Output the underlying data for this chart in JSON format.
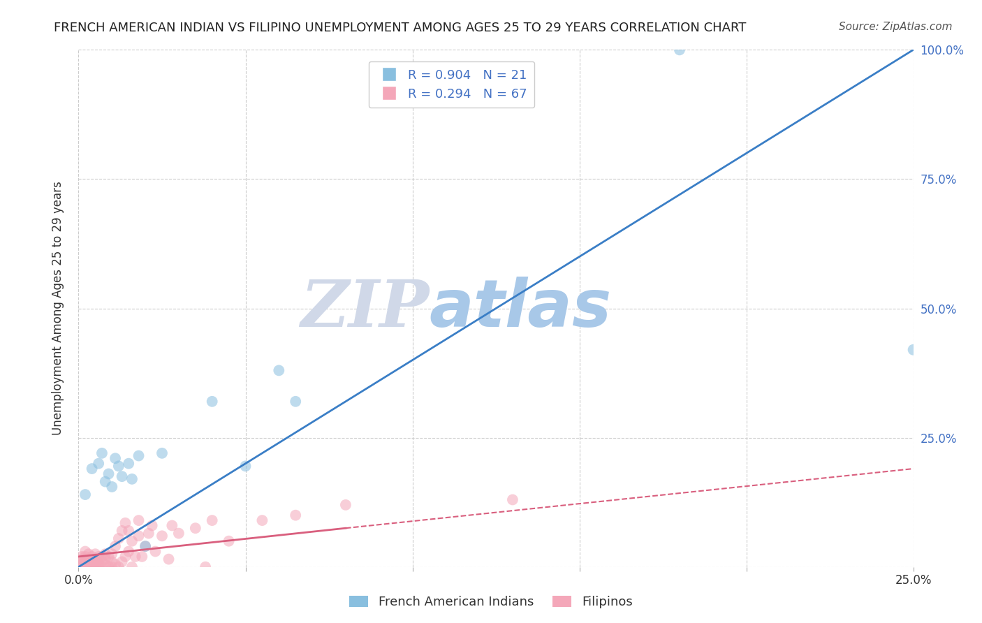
{
  "title": "FRENCH AMERICAN INDIAN VS FILIPINO UNEMPLOYMENT AMONG AGES 25 TO 29 YEARS CORRELATION CHART",
  "source": "Source: ZipAtlas.com",
  "ylabel": "Unemployment Among Ages 25 to 29 years",
  "xlabel_blue": "French American Indians",
  "xlabel_pink": "Filipinos",
  "R_blue": 0.904,
  "N_blue": 21,
  "R_pink": 0.294,
  "N_pink": 67,
  "color_blue": "#89bfdf",
  "color_pink": "#f4a7b9",
  "line_blue": "#3a7ec6",
  "line_pink": "#d95f7e",
  "watermark_zip": "ZIP",
  "watermark_atlas": "atlas",
  "watermark_color_zip": "#d0d8e8",
  "watermark_color_atlas": "#a8c8e8",
  "blue_scatter_x": [
    0.002,
    0.004,
    0.006,
    0.007,
    0.008,
    0.009,
    0.01,
    0.011,
    0.012,
    0.013,
    0.015,
    0.016,
    0.018,
    0.02,
    0.025,
    0.04,
    0.05,
    0.06,
    0.065,
    0.18,
    0.25
  ],
  "blue_scatter_y": [
    0.14,
    0.19,
    0.2,
    0.22,
    0.165,
    0.18,
    0.155,
    0.21,
    0.195,
    0.175,
    0.2,
    0.17,
    0.215,
    0.04,
    0.22,
    0.32,
    0.195,
    0.38,
    0.32,
    1.0,
    0.42
  ],
  "pink_scatter_x": [
    0.001,
    0.001,
    0.001,
    0.001,
    0.001,
    0.002,
    0.002,
    0.002,
    0.002,
    0.002,
    0.003,
    0.003,
    0.003,
    0.003,
    0.004,
    0.004,
    0.004,
    0.005,
    0.005,
    0.005,
    0.005,
    0.006,
    0.006,
    0.006,
    0.007,
    0.007,
    0.007,
    0.008,
    0.008,
    0.008,
    0.009,
    0.009,
    0.01,
    0.01,
    0.01,
    0.011,
    0.011,
    0.012,
    0.012,
    0.013,
    0.013,
    0.014,
    0.014,
    0.015,
    0.015,
    0.016,
    0.016,
    0.017,
    0.018,
    0.018,
    0.019,
    0.02,
    0.021,
    0.022,
    0.023,
    0.025,
    0.027,
    0.028,
    0.03,
    0.035,
    0.038,
    0.04,
    0.045,
    0.055,
    0.065,
    0.08,
    0.13
  ],
  "pink_scatter_y": [
    0.0,
    0.005,
    0.01,
    0.015,
    0.02,
    0.0,
    0.005,
    0.01,
    0.02,
    0.03,
    0.0,
    0.005,
    0.015,
    0.025,
    0.0,
    0.01,
    0.02,
    0.0,
    0.008,
    0.015,
    0.025,
    0.0,
    0.008,
    0.02,
    0.0,
    0.01,
    0.02,
    0.005,
    0.015,
    0.025,
    0.0,
    0.02,
    0.0,
    0.01,
    0.025,
    0.005,
    0.04,
    0.0,
    0.055,
    0.01,
    0.07,
    0.02,
    0.085,
    0.03,
    0.07,
    0.0,
    0.05,
    0.02,
    0.06,
    0.09,
    0.02,
    0.04,
    0.065,
    0.08,
    0.03,
    0.06,
    0.015,
    0.08,
    0.065,
    0.075,
    0.0,
    0.09,
    0.05,
    0.09,
    0.1,
    0.12,
    0.13
  ],
  "blue_line_x0": 0.0,
  "blue_line_y0": 0.0,
  "blue_line_x1": 0.25,
  "blue_line_y1": 1.0,
  "pink_line_solid_x0": 0.0,
  "pink_line_solid_y0": 0.02,
  "pink_line_solid_x1": 0.08,
  "pink_line_solid_y1": 0.075,
  "pink_line_dash_x0": 0.08,
  "pink_line_dash_y0": 0.075,
  "pink_line_dash_x1": 0.25,
  "pink_line_dash_y1": 0.19,
  "xlim": [
    0.0,
    0.25
  ],
  "ylim": [
    0.0,
    1.0
  ],
  "xticks": [
    0.0,
    0.05,
    0.1,
    0.15,
    0.2,
    0.25
  ],
  "xtick_labels": [
    "0.0%",
    "",
    "",
    "",
    "",
    "25.0%"
  ],
  "yticks": [
    0.0,
    0.25,
    0.5,
    0.75,
    1.0
  ],
  "ytick_right_labels": [
    "",
    "25.0%",
    "50.0%",
    "75.0%",
    "100.0%"
  ],
  "grid_color": "#cccccc",
  "background_color": "#ffffff",
  "title_fontsize": 13,
  "source_fontsize": 11,
  "axis_label_fontsize": 12,
  "legend_fontsize": 13,
  "tick_label_fontsize": 12,
  "right_tick_color": "#4472c4"
}
